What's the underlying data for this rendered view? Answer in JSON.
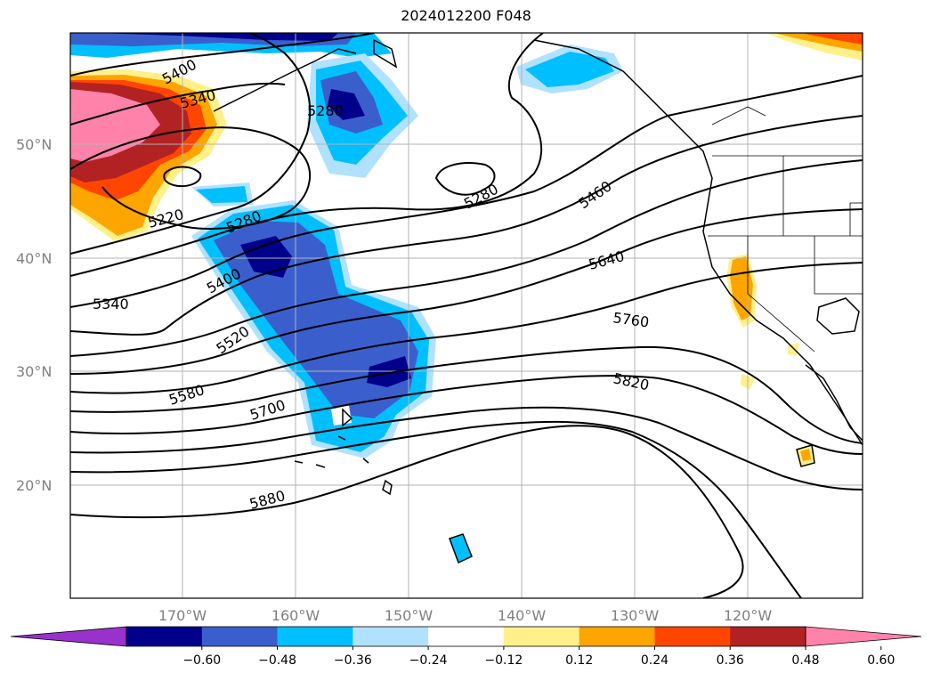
{
  "title": "2024012200 F048",
  "lat_labels": [
    "50°N",
    "40°N",
    "30°N",
    "20°N"
  ],
  "lon_labels": [
    "170°W",
    "160°W",
    "150°W",
    "140°W",
    "130°W",
    "120°W"
  ],
  "contour_labels": [
    "5400",
    "5340",
    "5280",
    "5220",
    "5280",
    "5280",
    "5460",
    "5400",
    "5340",
    "5520",
    "5640",
    "5580",
    "5760",
    "5700",
    "5820",
    "5880"
  ],
  "colorbar": {
    "ticks": [
      "−0.60",
      "−0.48",
      "−0.36",
      "−0.24",
      "−0.12",
      "0.12",
      "0.24",
      "0.36",
      "0.48",
      "0.60"
    ],
    "colors": [
      "#9932cc",
      "#00008b",
      "#3a5fcd",
      "#00bfff",
      "#b0e2ff",
      "#ffffff",
      "#fff08a",
      "#ffa500",
      "#ff4500",
      "#b22222",
      "#ff82ab"
    ]
  }
}
